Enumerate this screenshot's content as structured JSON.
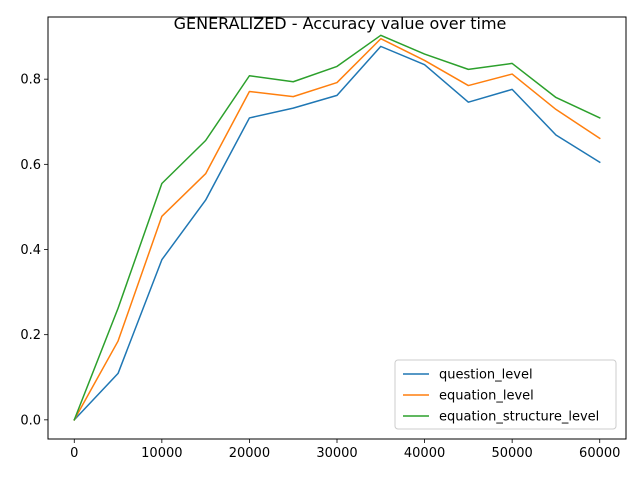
{
  "chart_data": {
    "type": "line",
    "title": "GENERALIZED - Accuracy value over time",
    "xlabel": "",
    "ylabel": "",
    "xlim": [
      -3000,
      63000
    ],
    "ylim": [
      -0.045,
      0.946
    ],
    "xticks": [
      0,
      10000,
      20000,
      30000,
      40000,
      50000,
      60000
    ],
    "yticks": [
      0.0,
      0.2,
      0.4,
      0.6,
      0.8
    ],
    "x": [
      0,
      5000,
      10000,
      15000,
      20000,
      25000,
      30000,
      35000,
      40000,
      45000,
      50000,
      55000,
      60000
    ],
    "grid": false,
    "legend_position": "lower-right",
    "series": [
      {
        "name": "question_level",
        "color": "#1f77b4",
        "values": [
          0.0,
          0.109,
          0.376,
          0.516,
          0.709,
          0.732,
          0.762,
          0.877,
          0.834,
          0.746,
          0.776,
          0.669,
          0.605
        ]
      },
      {
        "name": "equation_level",
        "color": "#ff7f0e",
        "values": [
          0.0,
          0.185,
          0.478,
          0.578,
          0.771,
          0.759,
          0.792,
          0.895,
          0.844,
          0.785,
          0.812,
          0.729,
          0.661
        ]
      },
      {
        "name": "equation_structure_level",
        "color": "#2ca02c",
        "values": [
          0.0,
          0.262,
          0.555,
          0.656,
          0.808,
          0.794,
          0.83,
          0.903,
          0.859,
          0.823,
          0.837,
          0.757,
          0.709
        ]
      }
    ]
  }
}
